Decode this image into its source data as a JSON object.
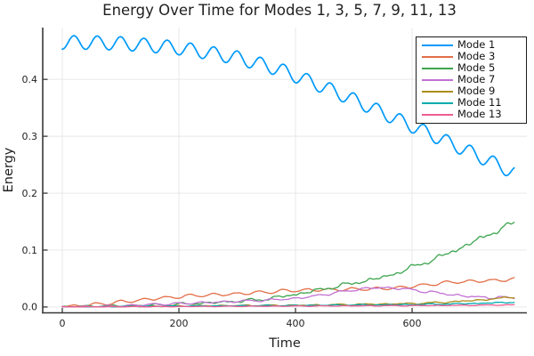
{
  "title": "Energy Over Time for Modes 1, 3, 5, 7, 9, 11, 13",
  "colors": {
    "background": "#ffffff",
    "axis": "#383838",
    "grid": "#e6e6e6",
    "text": "#1f1f1f",
    "legend_border": "#1d1d1d"
  },
  "chart_data": {
    "type": "line",
    "title": "Energy Over Time for Modes 1, 3, 5, 7, 9, 11, 13",
    "xlabel": "Time",
    "ylabel": "Energy",
    "xlim": [
      -33.6,
      796.9
    ],
    "ylim": [
      -0.0103,
      0.491
    ],
    "xticks": {
      "values": [
        0,
        200,
        400,
        600
      ],
      "labels": [
        "0",
        "200",
        "400",
        "600"
      ]
    },
    "yticks": {
      "values": [
        0,
        0.1,
        0.2,
        0.3,
        0.4
      ],
      "labels": [
        "0.0",
        "0.1",
        "0.2",
        "0.3",
        "0.4"
      ]
    },
    "grid": true,
    "legend_position": "top-right",
    "sample_t": {
      "start": 0,
      "step": 25,
      "count": 32,
      "t_max": 775
    },
    "series": [
      {
        "name": "Mode 1",
        "color": "#009AFA",
        "line_width": 1.7,
        "mean": [
          0.465,
          0.4648,
          0.4645,
          0.464,
          0.463,
          0.4615,
          0.4595,
          0.4575,
          0.455,
          0.451,
          0.447,
          0.4425,
          0.438,
          0.431,
          0.424,
          0.4165,
          0.406,
          0.396,
          0.386,
          0.375,
          0.364,
          0.3525,
          0.341,
          0.3295,
          0.318,
          0.3065,
          0.295,
          0.2835,
          0.272,
          0.26,
          0.248,
          0.236
        ],
        "osc_amp": 0.012,
        "osc_period": 40,
        "osc_phase": -1.57,
        "noise_amp": 0.0,
        "noise_growth": 0
      },
      {
        "name": "Mode 3",
        "color": "#E26E47",
        "line_width": 1.3,
        "mean": [
          0,
          0.002,
          0.004,
          0.006,
          0.009,
          0.011,
          0.014,
          0.016,
          0.018,
          0.02,
          0.021,
          0.022,
          0.023,
          0.025,
          0.026,
          0.028,
          0.029,
          0.03,
          0.03,
          0.031,
          0.031,
          0.032,
          0.032,
          0.034,
          0.036,
          0.039,
          0.042,
          0.044,
          0.045,
          0.046,
          0.047,
          0.049
        ],
        "osc_amp": 0.0025,
        "osc_period": 40,
        "osc_phase": -1.3,
        "noise_amp": 0.0008,
        "noise_growth": 0
      },
      {
        "name": "Mode 5",
        "color": "#3DA44E",
        "line_width": 1.3,
        "mean": [
          0,
          0.0003,
          0.0007,
          0.0012,
          0.0018,
          0.0025,
          0.0031,
          0.0038,
          0.0048,
          0.006,
          0.0072,
          0.0085,
          0.01,
          0.012,
          0.014,
          0.018,
          0.022,
          0.027,
          0.032,
          0.037,
          0.042,
          0.047,
          0.052,
          0.06,
          0.07,
          0.079,
          0.089,
          0.1,
          0.112,
          0.124,
          0.136,
          0.148
        ],
        "osc_amp": 0.0015,
        "osc_period": 40,
        "osc_phase": 1.0,
        "noise_amp": 0.005,
        "noise_growth": 1
      },
      {
        "name": "Mode 7",
        "color": "#C271D2",
        "line_width": 1.3,
        "mean": [
          0,
          0.0004,
          0.001,
          0.0015,
          0.002,
          0.003,
          0.0045,
          0.005,
          0.006,
          0.007,
          0.008,
          0.009,
          0.01,
          0.011,
          0.012,
          0.0135,
          0.015,
          0.018,
          0.022,
          0.026,
          0.03,
          0.033,
          0.034,
          0.033,
          0.03,
          0.027,
          0.024,
          0.021,
          0.018,
          0.017,
          0.0165,
          0.016
        ],
        "osc_amp": 0.0015,
        "osc_period": 40,
        "osc_phase": 2.0,
        "noise_amp": 0.002,
        "noise_growth": 1
      },
      {
        "name": "Mode 9",
        "color": "#AC8D18",
        "line_width": 1.3,
        "mean": [
          0,
          0.0002,
          0.0004,
          0.0006,
          0.0008,
          0.001,
          0.0012,
          0.0015,
          0.0018,
          0.002,
          0.0022,
          0.0024,
          0.0025,
          0.0026,
          0.0028,
          0.0029,
          0.003,
          0.0033,
          0.0036,
          0.004,
          0.0045,
          0.0048,
          0.0052,
          0.0056,
          0.006,
          0.007,
          0.008,
          0.0095,
          0.011,
          0.013,
          0.015,
          0.018
        ],
        "osc_amp": 0.0008,
        "osc_period": 40,
        "osc_phase": 2.5,
        "noise_amp": 0.0015,
        "noise_growth": 1
      },
      {
        "name": "Mode 11",
        "color": "#00AAAE",
        "line_width": 1.3,
        "mean": [
          0,
          0.0001,
          0.0003,
          0.0005,
          0.0008,
          0.001,
          0.0012,
          0.0014,
          0.0016,
          0.0018,
          0.002,
          0.0021,
          0.0022,
          0.0023,
          0.0024,
          0.0025,
          0.0026,
          0.0028,
          0.003,
          0.0032,
          0.0034,
          0.0036,
          0.0038,
          0.004,
          0.0043,
          0.0046,
          0.005,
          0.0055,
          0.006,
          0.0067,
          0.0075,
          0.0085
        ],
        "osc_amp": 0.0005,
        "osc_period": 40,
        "osc_phase": 3.0,
        "noise_amp": 0.001,
        "noise_growth": 1
      },
      {
        "name": "Mode 13",
        "color": "#ED5D92",
        "line_width": 1.3,
        "mean": [
          0,
          0.0001,
          0.0002,
          0.0003,
          0.0004,
          0.0005,
          0.0006,
          0.0007,
          0.0008,
          0.0009,
          0.001,
          0.0011,
          0.0012,
          0.0013,
          0.0014,
          0.0015,
          0.0016,
          0.0017,
          0.0018,
          0.0019,
          0.002,
          0.0021,
          0.0022,
          0.0023,
          0.0024,
          0.0025,
          0.0026,
          0.0028,
          0.003,
          0.0032,
          0.0035,
          0.0038
        ],
        "osc_amp": 0.0004,
        "osc_period": 40,
        "osc_phase": 0.8,
        "noise_amp": 0.0006,
        "noise_growth": 1
      }
    ]
  }
}
